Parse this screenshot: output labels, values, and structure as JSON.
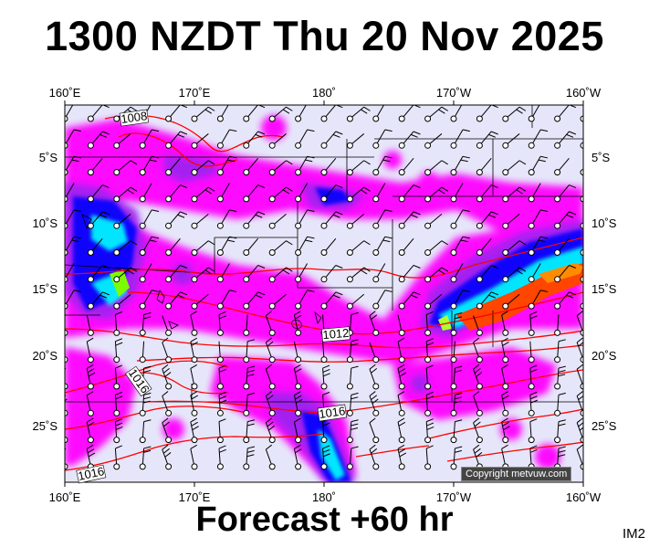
{
  "title": "1300 NZDT Thu 20 Nov 2025",
  "footer": "Forecast +60 hr",
  "code": "IM2",
  "copyright": "Copyright metvuw.com",
  "lon_labels": [
    "160˚E",
    "170˚E",
    "180˚",
    "170˚W",
    "160˚W"
  ],
  "lat_labels": [
    "5˚S",
    "10˚S",
    "15˚S",
    "20˚S",
    "25˚S"
  ],
  "isobar_labels": [
    "1008",
    "1012",
    "1016",
    "1016",
    "1016"
  ],
  "colors": {
    "ocean": "#e6e6fa",
    "rain_light": "#ff00ff",
    "rain_mid": "#a020f0",
    "rain_heavy": "#0000ff",
    "rain_veryheavy": "#00ffff",
    "rain_extreme": "#ff4500",
    "isobar": "#ff0000"
  }
}
